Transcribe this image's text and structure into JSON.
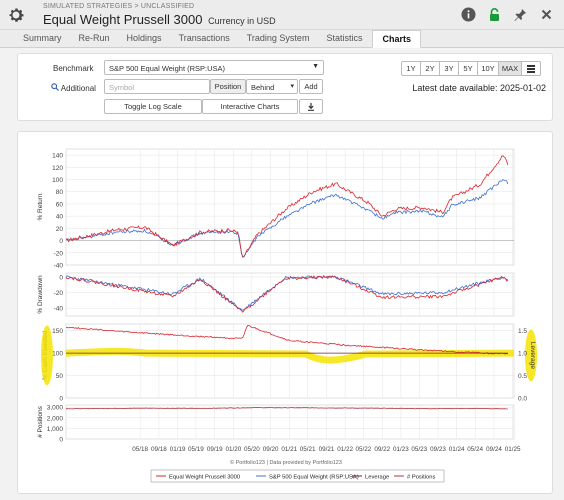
{
  "header": {
    "breadcrumb": "SIMULATED STRATEGIES > UNCLASSIFIED",
    "title": "Equal Weight Prussell 3000",
    "currency": "Currency in USD"
  },
  "tabs": [
    "Summary",
    "Re-Run",
    "Holdings",
    "Transactions",
    "Trading System",
    "Statistics",
    "Charts"
  ],
  "active_tab": "Charts",
  "controls": {
    "benchmark_label": "Benchmark",
    "benchmark_value": "S&P 500 Equal Weight (RSP:USA)",
    "additional_label": "Additional",
    "symbol_placeholder": "Symbol",
    "position_label": "Position",
    "position_value": "Behind",
    "add_label": "Add",
    "toggle_log_label": "Toggle Log Scale",
    "interactive_label": "Interactive Charts",
    "ranges": [
      "1Y",
      "2Y",
      "3Y",
      "5Y",
      "10Y",
      "MAX"
    ],
    "active_range": "MAX",
    "latest_date": "Latest date available: 2025-01-02"
  },
  "colors": {
    "strategy": "#d9262e",
    "benchmark": "#3d6fd1",
    "leverage": "#7a1f3c",
    "positions": "#b0343a",
    "highlight": "#f4e400"
  },
  "chart_data": [
    {
      "type": "line",
      "ylabel": "% Return",
      "yticks": [
        -40,
        -20,
        0,
        20,
        40,
        60,
        80,
        100,
        120,
        140
      ],
      "ylim": [
        -40,
        150
      ],
      "series": [
        {
          "name": "Equal Weight Prussell 3000",
          "x": [
            "2017-01",
            "2017-06",
            "2017-12",
            "2018-06",
            "2018-12",
            "2019-06",
            "2019-12",
            "2020-02",
            "2020-03",
            "2020-06",
            "2020-12",
            "2021-06",
            "2021-11",
            "2022-06",
            "2022-09",
            "2022-12",
            "2023-06",
            "2023-10",
            "2023-12",
            "2024-06",
            "2024-11",
            "2024-12"
          ],
          "values": [
            0,
            8,
            18,
            22,
            -8,
            14,
            17,
            14,
            -30,
            8,
            50,
            80,
            93,
            62,
            40,
            52,
            54,
            46,
            70,
            92,
            140,
            125
          ]
        },
        {
          "name": "S&P 500 Equal Weight (RSP:USA)",
          "x": [
            "2017-01",
            "2017-06",
            "2017-12",
            "2018-06",
            "2018-12",
            "2019-06",
            "2019-12",
            "2020-02",
            "2020-03",
            "2020-06",
            "2020-12",
            "2021-06",
            "2021-11",
            "2022-06",
            "2022-09",
            "2022-12",
            "2023-06",
            "2023-10",
            "2023-12",
            "2024-06",
            "2024-11",
            "2024-12"
          ],
          "values": [
            0,
            6,
            14,
            16,
            -7,
            12,
            15,
            12,
            -30,
            5,
            38,
            62,
            75,
            50,
            36,
            46,
            48,
            38,
            58,
            70,
            100,
            95
          ]
        }
      ]
    },
    {
      "type": "line",
      "ylabel": "% Drawdown",
      "yticks": [
        -40,
        -20,
        0
      ],
      "ylim": [
        -50,
        5
      ],
      "series": [
        {
          "name": "Equal Weight Prussell 3000",
          "x": [
            "2017-01",
            "2018-12",
            "2019-06",
            "2020-03",
            "2020-12",
            "2021-11",
            "2022-09",
            "2023-10",
            "2024-11",
            "2024-12"
          ],
          "values": [
            0,
            -25,
            -3,
            -45,
            -2,
            0,
            -26,
            -25,
            0,
            -6
          ]
        },
        {
          "name": "S&P 500 Equal Weight (RSP:USA)",
          "x": [
            "2017-01",
            "2018-12",
            "2019-06",
            "2020-03",
            "2020-12",
            "2021-11",
            "2022-09",
            "2023-10",
            "2024-11",
            "2024-12"
          ],
          "values": [
            0,
            -22,
            -2,
            -43,
            -1,
            0,
            -22,
            -20,
            0,
            -4
          ]
        }
      ]
    },
    {
      "type": "line",
      "ylabel": "% Cash Invested",
      "y2label": "Leverage",
      "yticks": [
        0,
        50,
        100,
        150
      ],
      "y2ticks": [
        0.0,
        0.5,
        1.0,
        1.5
      ],
      "ylim": [
        0,
        165
      ],
      "y2lim": [
        0,
        1.65
      ],
      "series": [
        {
          "name": "% Cash Invested",
          "x": [
            "2017-01",
            "2018-01",
            "2019-01",
            "2020-03",
            "2020-04",
            "2021-01",
            "2022-01",
            "2023-01",
            "2024-01",
            "2024-12"
          ],
          "values": [
            158,
            148,
            140,
            132,
            162,
            128,
            118,
            110,
            103,
            98
          ]
        },
        {
          "name": "Leverage",
          "x": [
            "2017-01",
            "2024-12"
          ],
          "values": [
            1.0,
            1.0
          ]
        }
      ]
    },
    {
      "type": "line",
      "ylabel": "# Positions",
      "yticks": [
        0,
        1000,
        2000,
        3000
      ],
      "ylim": [
        0,
        3200
      ],
      "series": [
        {
          "name": "# Positions",
          "x": [
            "2017-01",
            "2018-06",
            "2019-06",
            "2020-06",
            "2021-06",
            "2022-06",
            "2023-06",
            "2024-06",
            "2024-12"
          ],
          "values": [
            2850,
            2900,
            2880,
            2950,
            2930,
            2900,
            2860,
            2870,
            2830
          ]
        }
      ]
    }
  ],
  "xaxis": {
    "ticks": [
      "05/18",
      "09/18",
      "01/19",
      "05/19",
      "09/19",
      "01/20",
      "05/20",
      "09/20",
      "01/21",
      "05/21",
      "09/21",
      "01/22",
      "05/22",
      "09/22",
      "01/23",
      "05/23",
      "09/23",
      "01/24",
      "05/24",
      "09/24",
      "01/25"
    ]
  },
  "credit": "© Portfolio123 | Data provided by Portfolio123",
  "legend": [
    "Equal Weight Prussell 3000",
    "S&P 500 Equal Weight (RSP:USA)",
    "Leverage",
    "# Positions"
  ]
}
